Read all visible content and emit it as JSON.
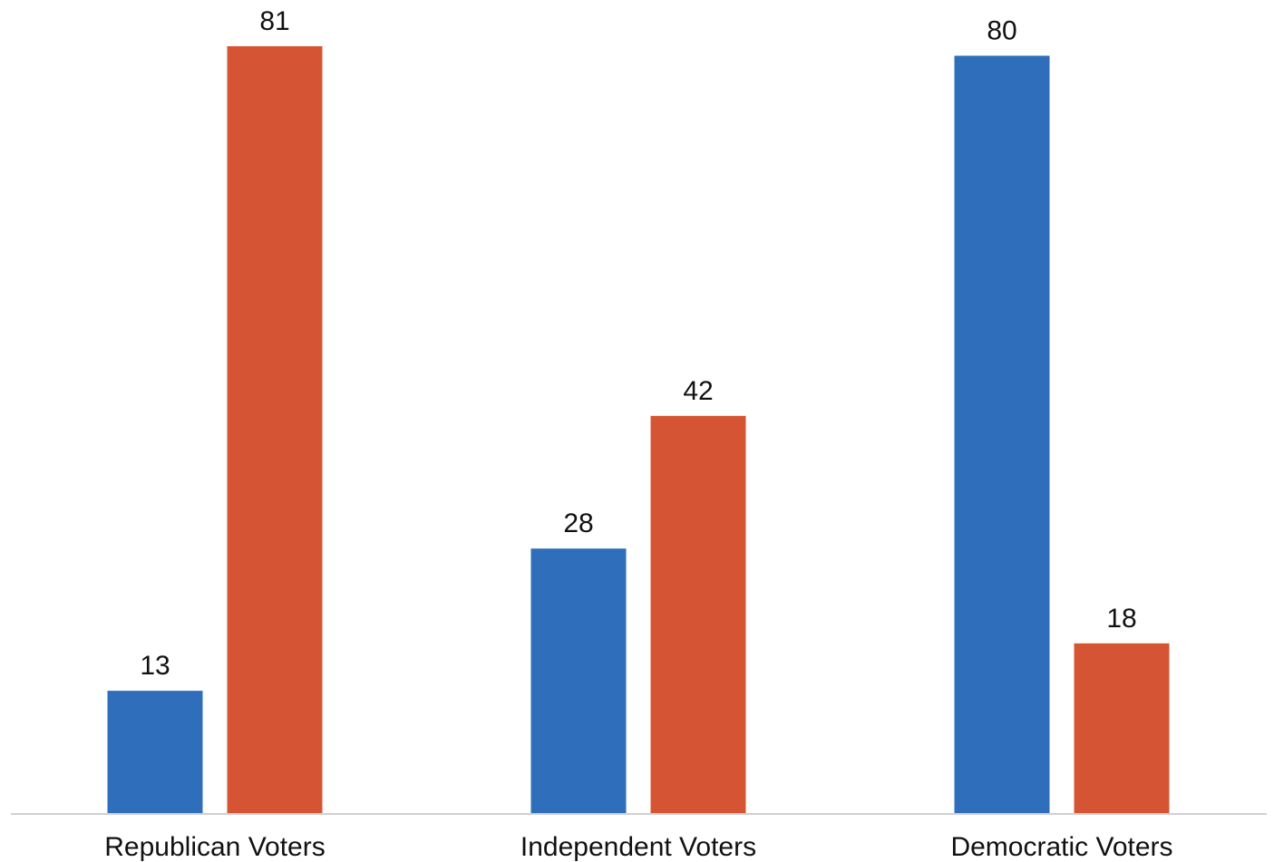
{
  "chart_data": {
    "type": "bar",
    "categories": [
      "Republican Voters",
      "Independent Voters",
      "Democratic Voters"
    ],
    "series": [
      {
        "values": [
          13,
          28,
          80
        ],
        "color": "#2F6EBA"
      },
      {
        "values": [
          81,
          42,
          18
        ],
        "color": "#D55433"
      }
    ],
    "ylim": [
      0,
      81
    ],
    "grid": false,
    "legend": "none",
    "data_labels": true,
    "axis_color": "#D0D0D0"
  }
}
